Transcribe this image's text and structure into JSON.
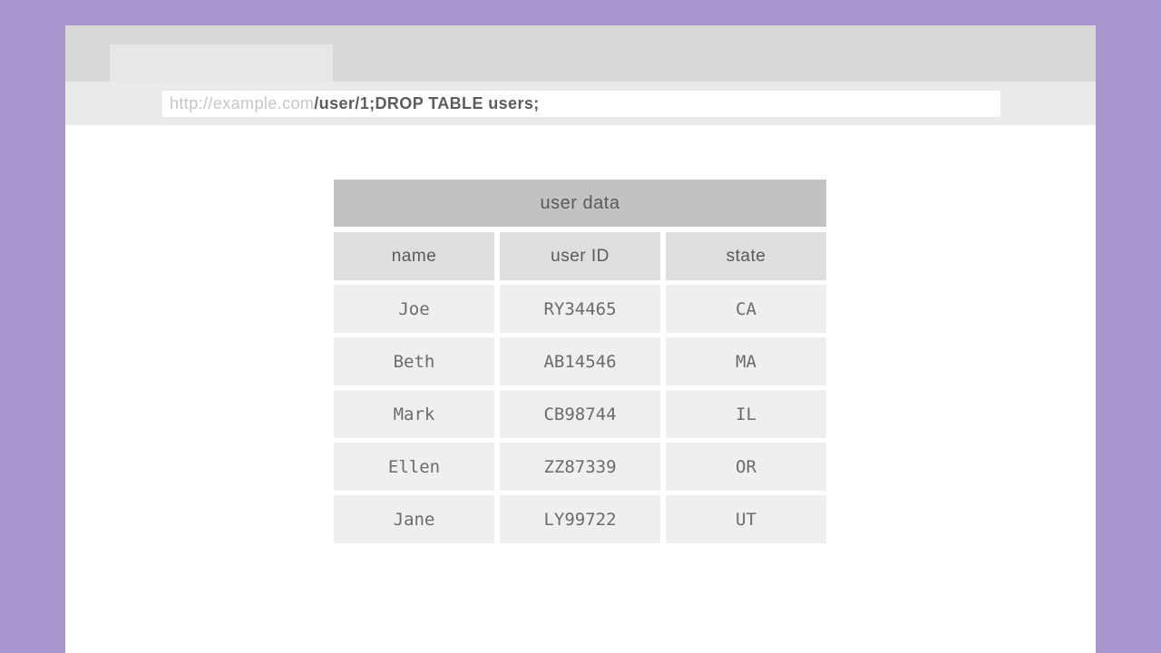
{
  "colors": {
    "backdrop_purple": "#a995ce",
    "browser_header_gray": "#d8d8d8",
    "browser_tab_gray": "#e7e7e7",
    "address_bar_gray": "#eaeaea",
    "url_input_bg": "#ffffff",
    "url_domain_text": "#c6c6c6",
    "url_path_text": "#5c5c5c",
    "table_title_bg": "#c2c2c2",
    "table_header_bg": "#dedede",
    "table_cell_bg": "#efefef",
    "table_text": "#6b6b6b"
  },
  "browser": {
    "url": {
      "domain": "http://example.com",
      "path": "/user/1;DROP TABLE users;"
    }
  },
  "table": {
    "title": "user data",
    "columns": [
      "name",
      "user ID",
      "state"
    ],
    "rows": [
      [
        "Joe",
        "RY34465",
        "CA"
      ],
      [
        "Beth",
        "AB14546",
        "MA"
      ],
      [
        "Mark",
        "CB98744",
        "IL"
      ],
      [
        "Ellen",
        "ZZ87339",
        "OR"
      ],
      [
        "Jane",
        "LY99722",
        "UT"
      ]
    ]
  }
}
